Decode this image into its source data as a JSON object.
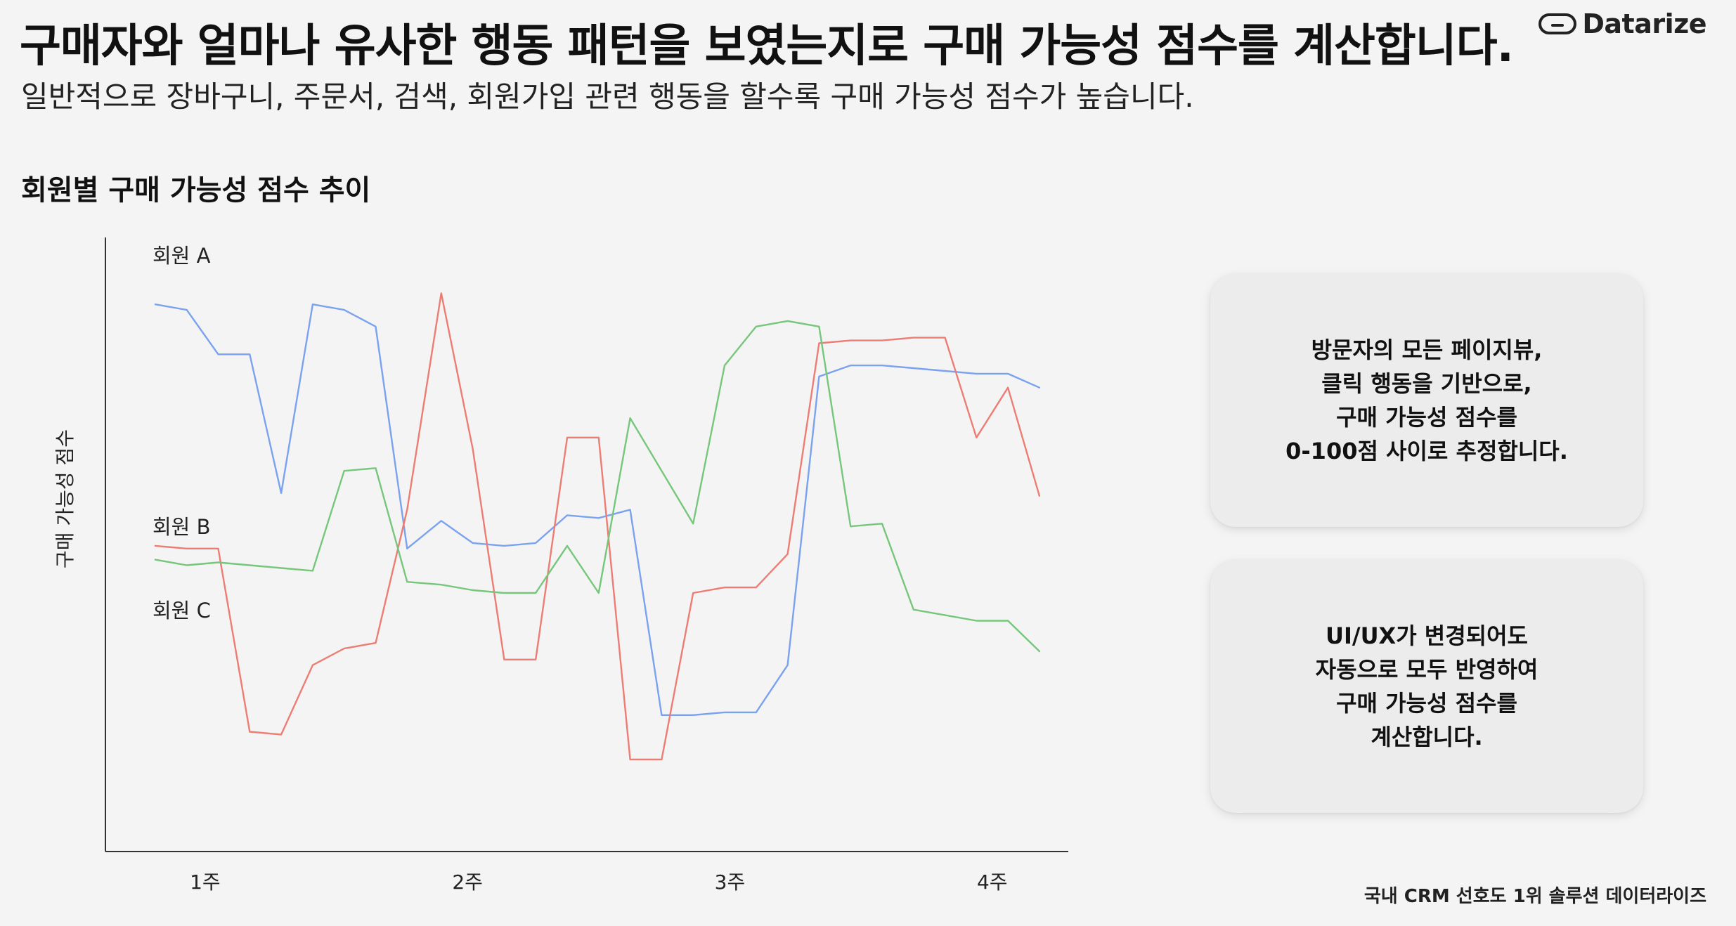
{
  "header": {
    "title": "구매자와 얼마나 유사한 행동 패턴을 보였는지로 구매 가능성 점수를 계산합니다.",
    "subtitle": "일반적으로 장바구니, 주문서, 검색, 회원가입 관련 행동을 할수록 구매 가능성 점수가 높습니다.",
    "logo_text": "Datarize"
  },
  "chart_section": {
    "title": "회원별 구매 가능성 점수 추이"
  },
  "cards": [
    {
      "lines": [
        "방문자의 모든 페이지뷰,",
        "클릭 행동을 기반으로,",
        "구매 가능성 점수를",
        "0-100점 사이로 추정합니다."
      ]
    },
    {
      "lines": [
        "UI/UX가 변경되어도",
        "자동으로 모두 반영하여",
        "구매 가능성 점수를",
        "계산합니다."
      ]
    }
  ],
  "footer": "국내 CRM 선호도 1위 솔루션 데이터라이즈",
  "chart_data": {
    "type": "line",
    "ylabel": "구매 가능성 점수",
    "xlabel": "",
    "x_ticks": [
      "1주",
      "2주",
      "3주",
      "4주"
    ],
    "x_tick_positions": [
      1,
      2,
      3,
      4
    ],
    "xlim": [
      0.62,
      4.29
    ],
    "ylim": [
      0,
      100
    ],
    "grid": false,
    "legend": "inline labels near left",
    "series": [
      {
        "name": "회원 A",
        "color": "#7ba2ef",
        "x": [
          0.81,
          0.93,
          1.05,
          1.17,
          1.29,
          1.41,
          1.53,
          1.65,
          1.77,
          1.9,
          2.02,
          2.14,
          2.26,
          2.38,
          2.5,
          2.62,
          2.74,
          2.86,
          2.98,
          3.1,
          3.22,
          3.34,
          3.46,
          3.58,
          3.7,
          3.82,
          3.94,
          4.06,
          4.18
        ],
        "y": [
          92,
          91,
          83,
          83,
          58,
          92,
          91,
          88,
          48,
          53,
          49,
          48.5,
          49,
          54,
          53.5,
          55,
          18,
          18,
          18.5,
          18.5,
          27,
          79,
          81,
          81,
          80.5,
          80,
          79.5,
          79.5,
          77
        ]
      },
      {
        "name": "회원 B",
        "color": "#ed7d74",
        "x": [
          0.81,
          0.93,
          1.05,
          1.17,
          1.29,
          1.41,
          1.53,
          1.65,
          1.77,
          1.9,
          2.02,
          2.14,
          2.26,
          2.38,
          2.5,
          2.62,
          2.74,
          2.86,
          2.98,
          3.1,
          3.22,
          3.34,
          3.46,
          3.58,
          3.7,
          3.82,
          3.94,
          4.06,
          4.18
        ],
        "y": [
          48.5,
          48,
          48,
          15,
          14.5,
          27,
          30,
          31,
          55,
          94,
          66,
          28,
          28,
          68,
          68,
          10,
          10,
          40,
          41,
          41,
          47,
          85,
          85.5,
          85.5,
          86,
          86,
          68,
          77,
          57.5
        ]
      },
      {
        "name": "회원 C",
        "color": "#76c67c",
        "x": [
          0.81,
          0.93,
          1.05,
          1.17,
          1.29,
          1.41,
          1.53,
          1.65,
          1.77,
          1.9,
          2.02,
          2.14,
          2.26,
          2.38,
          2.5,
          2.62,
          2.74,
          2.86,
          2.98,
          3.1,
          3.22,
          3.34,
          3.46,
          3.58,
          3.7,
          3.82,
          3.94,
          4.06,
          4.18
        ],
        "y": [
          46,
          45,
          45.5,
          45,
          44.5,
          44,
          62,
          62.5,
          42,
          41.5,
          40.5,
          40,
          40,
          48.5,
          40,
          71.5,
          62,
          52.5,
          81,
          88,
          89,
          88,
          52,
          52.5,
          37,
          36,
          35,
          35,
          29.5
        ]
      }
    ]
  }
}
